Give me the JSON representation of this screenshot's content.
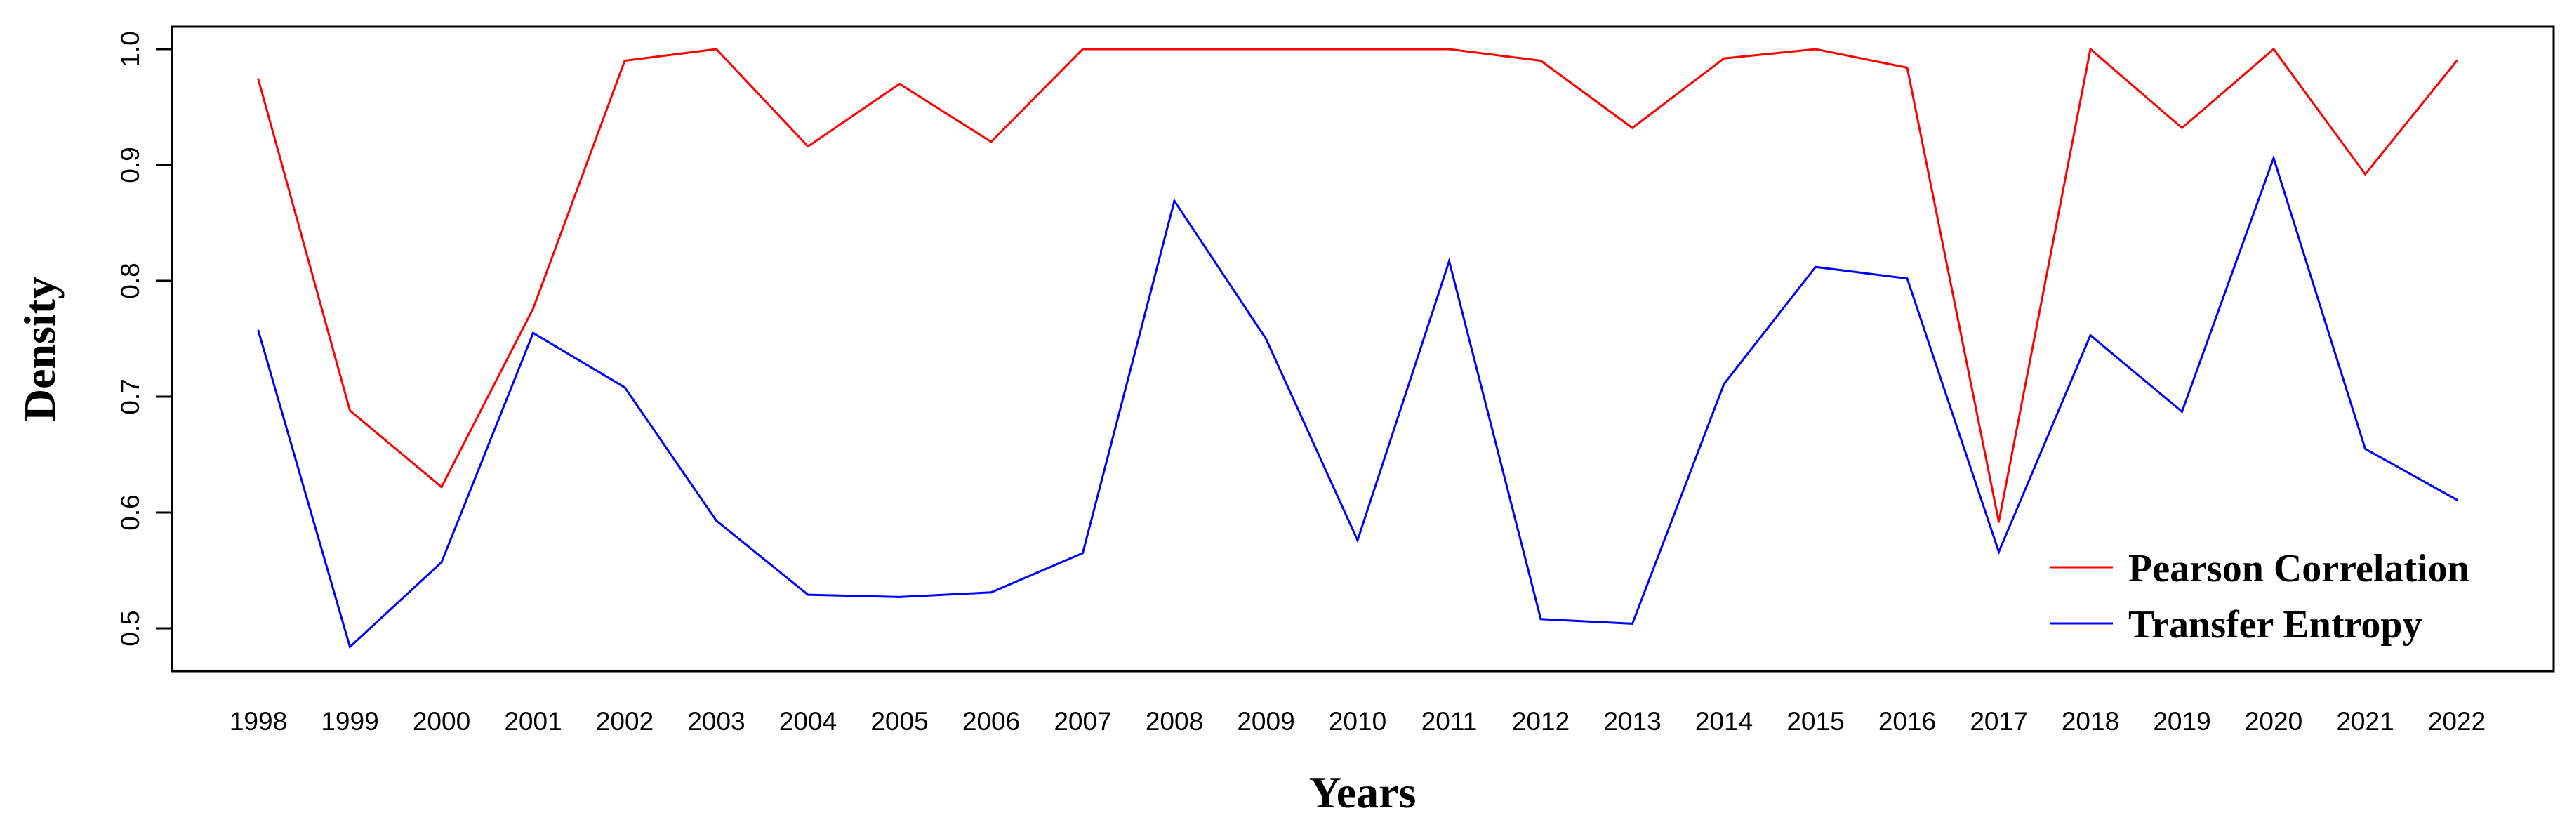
{
  "chart_data": {
    "type": "line",
    "xlabel": "Years",
    "ylabel": "Density",
    "x": [
      "1998",
      "1999",
      "2000",
      "2001",
      "2002",
      "2003",
      "2004",
      "2005",
      "2006",
      "2007",
      "2008",
      "2009",
      "2010",
      "2011",
      "2012",
      "2013",
      "2014",
      "2015",
      "2016",
      "2017",
      "2018",
      "2019",
      "2020",
      "2021",
      "2022"
    ],
    "ylim": [
      0.48,
      1.0
    ],
    "yticks": [
      "0.5",
      "0.6",
      "0.7",
      "0.8",
      "0.9",
      "1.0"
    ],
    "legend_position": "bottom-right",
    "series": [
      {
        "name": "Pearson Correlation",
        "color": "#ff0000",
        "values": [
          0.974,
          0.688,
          0.622,
          0.776,
          0.99,
          1.0,
          0.916,
          0.97,
          0.92,
          1.0,
          1.0,
          1.0,
          1.0,
          1.0,
          0.99,
          0.932,
          0.992,
          1.0,
          0.984,
          0.592,
          1.0,
          0.932,
          1.0,
          0.892,
          0.99
        ]
      },
      {
        "name": "Transfer Entropy",
        "color": "#0000ff",
        "values": [
          0.757,
          0.484,
          0.557,
          0.755,
          0.708,
          0.593,
          0.529,
          0.527,
          0.531,
          0.565,
          0.869,
          0.75,
          0.576,
          0.817,
          0.508,
          0.504,
          0.711,
          0.812,
          0.802,
          0.566,
          0.753,
          0.687,
          0.906,
          0.655,
          0.611
        ]
      }
    ]
  }
}
